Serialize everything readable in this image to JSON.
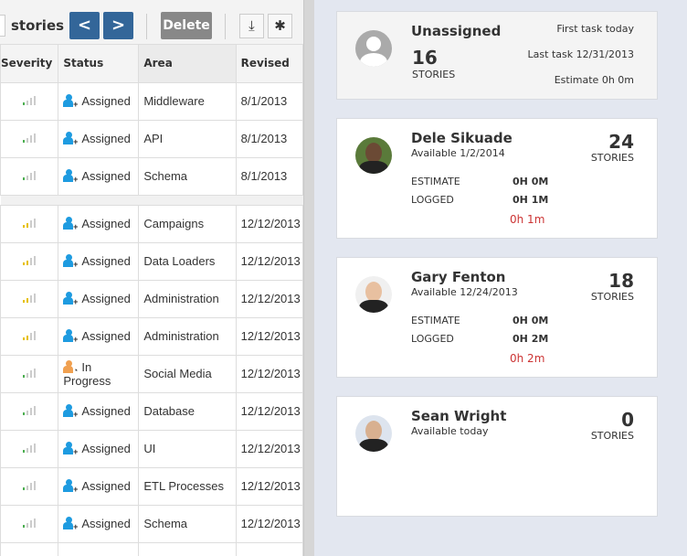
{
  "toolbar": {
    "label": "stories",
    "prev": "<",
    "next": ">",
    "delete": "Delete",
    "download_icon": "download-icon",
    "settings_icon": "gear-icon"
  },
  "table": {
    "headers": [
      "Severity",
      "Status",
      "Area",
      "Revised"
    ],
    "group1": [
      {
        "severity": 1,
        "sev_color": "#4caf50",
        "status": "Assigned",
        "area": "Middleware",
        "revised": "8/1/2013"
      },
      {
        "severity": 1,
        "sev_color": "#4caf50",
        "status": "Assigned",
        "area": "API",
        "revised": "8/1/2013"
      },
      {
        "severity": 1,
        "sev_color": "#4caf50",
        "status": "Assigned",
        "area": "Schema",
        "revised": "8/1/2013"
      }
    ],
    "group2": [
      {
        "severity": 2,
        "sev_color": "#e6c000",
        "status": "Assigned",
        "area": "Campaigns",
        "revised": "12/12/2013"
      },
      {
        "severity": 2,
        "sev_color": "#e6c000",
        "status": "Assigned",
        "area": "Data Loaders",
        "revised": "12/12/2013"
      },
      {
        "severity": 2,
        "sev_color": "#e6c000",
        "status": "Assigned",
        "area": "Administration",
        "revised": "12/12/2013"
      },
      {
        "severity": 2,
        "sev_color": "#e6c000",
        "status": "Assigned",
        "area": "Administration",
        "revised": "12/12/2013"
      },
      {
        "severity": 1,
        "sev_color": "#4caf50",
        "status": "In Progress",
        "area": "Social Media",
        "revised": "12/12/2013"
      },
      {
        "severity": 1,
        "sev_color": "#4caf50",
        "status": "Assigned",
        "area": "Database",
        "revised": "12/12/2013"
      },
      {
        "severity": 1,
        "sev_color": "#4caf50",
        "status": "Assigned",
        "area": "UI",
        "revised": "12/12/2013"
      },
      {
        "severity": 1,
        "sev_color": "#4caf50",
        "status": "Assigned",
        "area": "ETL Processes",
        "revised": "12/12/2013"
      },
      {
        "severity": 1,
        "sev_color": "#4caf50",
        "status": "Assigned",
        "area": "Schema",
        "revised": "12/12/2013"
      }
    ]
  },
  "unassigned": {
    "name": "Unassigned",
    "count": "16",
    "count_label": "STORIES",
    "first": "First task today",
    "last": "Last task 12/31/2013",
    "estimate": "Estimate 0h 0m"
  },
  "people": [
    {
      "name": "Dele Sikuade",
      "available": "Available 1/2/2014",
      "count": "24",
      "count_label": "STORIES",
      "estimate_label": "ESTIMATE",
      "estimate": "0H 0M",
      "logged_label": "LOGGED",
      "logged": "0H 1M",
      "diff": "0h 1m"
    },
    {
      "name": "Gary Fenton",
      "available": "Available 12/24/2013",
      "count": "18",
      "count_label": "STORIES",
      "estimate_label": "ESTIMATE",
      "estimate": "0H 0M",
      "logged_label": "LOGGED",
      "logged": "0H 2M",
      "diff": "0h 2m"
    },
    {
      "name": "Sean Wright",
      "available": "Available today",
      "count": "0",
      "count_label": "STORIES"
    }
  ],
  "colors": {
    "assigned": "#1e9be0",
    "in_progress": "#f0a050",
    "nav": "#336699"
  }
}
